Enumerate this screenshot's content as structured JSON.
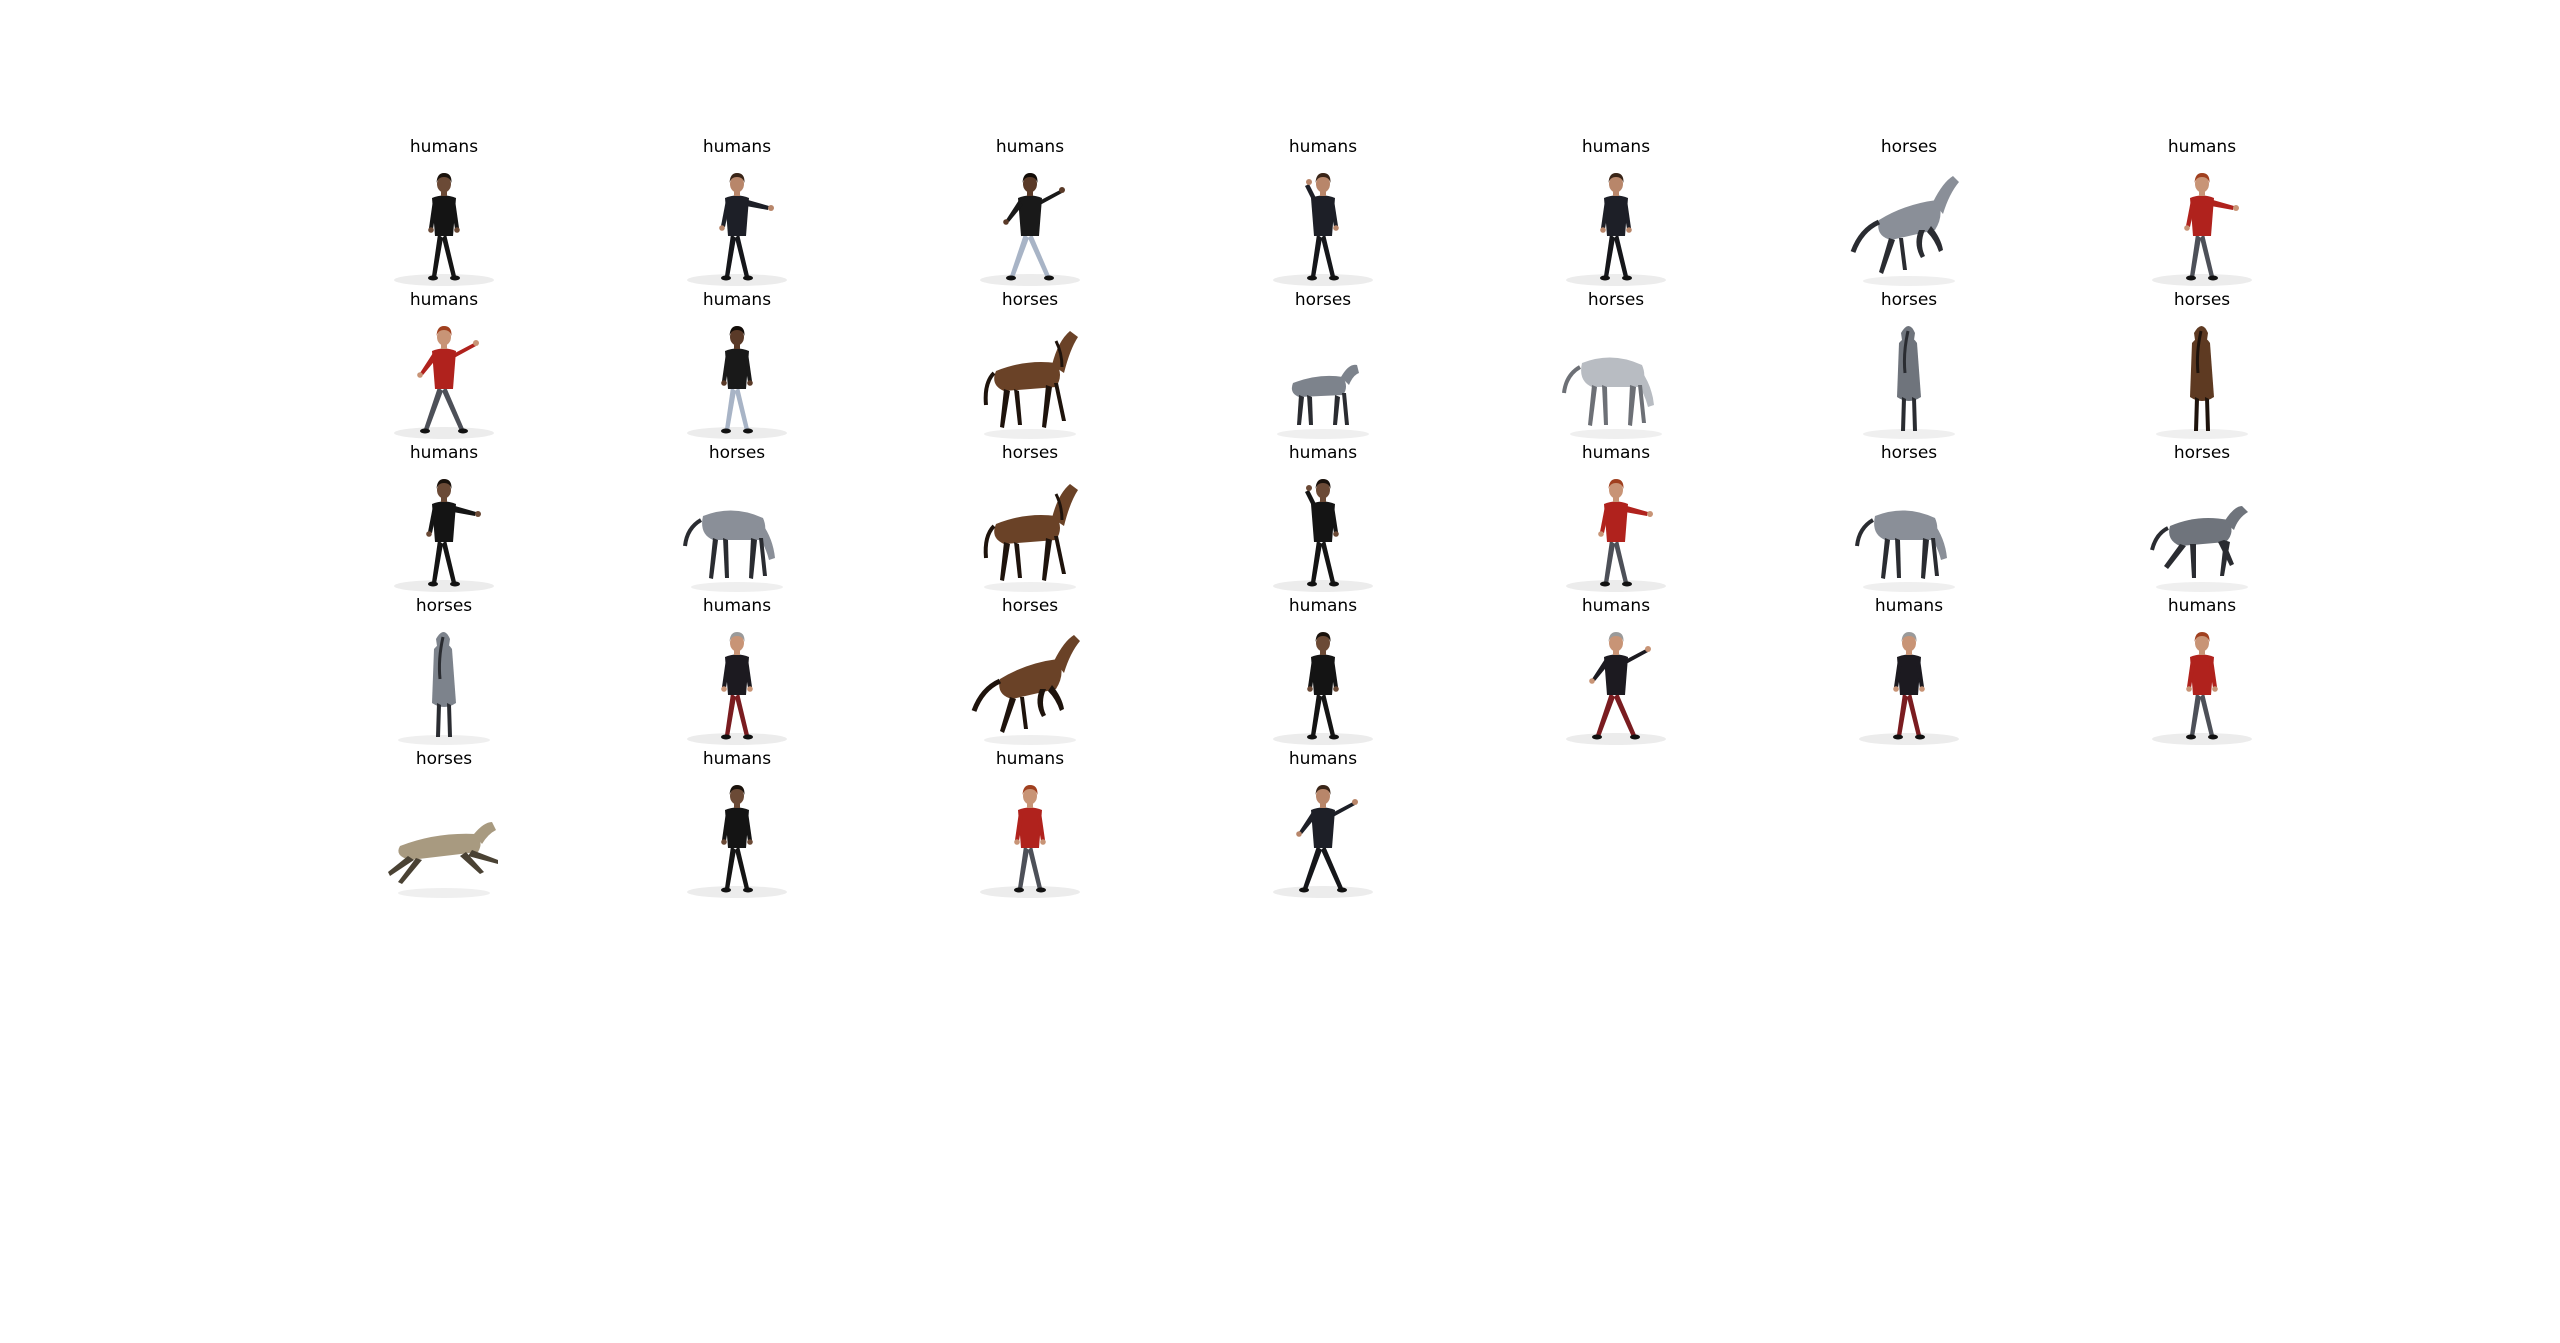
{
  "items": [
    {
      "label": "humans",
      "kind": "human",
      "skin": "#6b4a36",
      "shirt": "#141414",
      "pants": "#141414",
      "hair": "#1a120c",
      "pose": "stand"
    },
    {
      "label": "humans",
      "kind": "human",
      "skin": "#b8866a",
      "shirt": "#1d1f27",
      "pants": "#15161a",
      "hair": "#3a2518",
      "pose": "point"
    },
    {
      "label": "humans",
      "kind": "human",
      "skin": "#5a3a28",
      "shirt": "#191919",
      "pants": "#a8b4c6",
      "hair": "#120c08",
      "pose": "wide"
    },
    {
      "label": "humans",
      "kind": "human",
      "skin": "#b8866a",
      "shirt": "#1d1f27",
      "pants": "#15161a",
      "hair": "#3a2518",
      "pose": "headtouch"
    },
    {
      "label": "humans",
      "kind": "human",
      "skin": "#b8866a",
      "shirt": "#1d1f27",
      "pants": "#15161a",
      "hair": "#3a2518",
      "pose": "stand"
    },
    {
      "label": "horses",
      "kind": "horse",
      "coat": "#8a8f98",
      "dark": "#2a2c31",
      "pose": "rear"
    },
    {
      "label": "humans",
      "kind": "human",
      "skin": "#c89476",
      "shirt": "#b0221d",
      "pants": "#4d5058",
      "hair": "#a0401f",
      "pose": "point"
    },
    {
      "label": "humans",
      "kind": "human",
      "skin": "#c89476",
      "shirt": "#b0221d",
      "pants": "#4d5058",
      "hair": "#a0401f",
      "pose": "wide"
    },
    {
      "label": "humans",
      "kind": "human",
      "skin": "#5a3a28",
      "shirt": "#191919",
      "pants": "#a8b4c6",
      "hair": "#120c08",
      "pose": "stand"
    },
    {
      "label": "horses",
      "kind": "horse",
      "coat": "#6a4227",
      "dark": "#1e130c",
      "pose": "walk"
    },
    {
      "label": "horses",
      "kind": "horse",
      "coat": "#7d838c",
      "dark": "#2a2c31",
      "pose": "small"
    },
    {
      "label": "horses",
      "kind": "horse",
      "coat": "#b8bcc2",
      "dark": "#6d7076",
      "pose": "graze"
    },
    {
      "label": "horses",
      "kind": "horse",
      "coat": "#6f747c",
      "dark": "#2a2c31",
      "pose": "front"
    },
    {
      "label": "horses",
      "kind": "horse",
      "coat": "#5e3a22",
      "dark": "#1e130c",
      "pose": "front"
    },
    {
      "label": "humans",
      "kind": "human",
      "skin": "#6b4a36",
      "shirt": "#141414",
      "pants": "#141414",
      "hair": "#1a120c",
      "pose": "point"
    },
    {
      "label": "horses",
      "kind": "horse",
      "coat": "#8a8f98",
      "dark": "#2a2c31",
      "pose": "graze"
    },
    {
      "label": "horses",
      "kind": "horse",
      "coat": "#6a4227",
      "dark": "#1e130c",
      "pose": "walk"
    },
    {
      "label": "humans",
      "kind": "human",
      "skin": "#6b4a36",
      "shirt": "#141414",
      "pants": "#141414",
      "hair": "#1a120c",
      "pose": "headtouch"
    },
    {
      "label": "humans",
      "kind": "human",
      "skin": "#c89476",
      "shirt": "#b0221d",
      "pants": "#4d5058",
      "hair": "#a0401f",
      "pose": "point"
    },
    {
      "label": "horses",
      "kind": "horse",
      "coat": "#8a8f98",
      "dark": "#2a2c31",
      "pose": "graze"
    },
    {
      "label": "horses",
      "kind": "horse",
      "coat": "#6f747c",
      "dark": "#2a2c31",
      "pose": "gallop"
    },
    {
      "label": "horses",
      "kind": "horse",
      "coat": "#7d838c",
      "dark": "#2a2c31",
      "pose": "front"
    },
    {
      "label": "humans",
      "kind": "human",
      "skin": "#c89476",
      "shirt": "#1c1a20",
      "pants": "#7a1c20",
      "hair": "#9a9a9a",
      "pose": "stand"
    },
    {
      "label": "horses",
      "kind": "horse",
      "coat": "#6a4227",
      "dark": "#1e130c",
      "pose": "rear"
    },
    {
      "label": "humans",
      "kind": "human",
      "skin": "#6b4a36",
      "shirt": "#141414",
      "pants": "#141414",
      "hair": "#1a120c",
      "pose": "stand"
    },
    {
      "label": "humans",
      "kind": "human",
      "skin": "#c89476",
      "shirt": "#1c1a20",
      "pants": "#7a1c20",
      "hair": "#9a9a9a",
      "pose": "wide"
    },
    {
      "label": "humans",
      "kind": "human",
      "skin": "#c89476",
      "shirt": "#1c1a20",
      "pants": "#7a1c20",
      "hair": "#9a9a9a",
      "pose": "stand"
    },
    {
      "label": "humans",
      "kind": "human",
      "skin": "#c89476",
      "shirt": "#b0221d",
      "pants": "#4d5058",
      "hair": "#a0401f",
      "pose": "stand"
    },
    {
      "label": "horses",
      "kind": "horse",
      "coat": "#a89a80",
      "dark": "#4a4234",
      "pose": "leap"
    },
    {
      "label": "humans",
      "kind": "human",
      "skin": "#6b4a36",
      "shirt": "#141414",
      "pants": "#141414",
      "hair": "#1a120c",
      "pose": "stand"
    },
    {
      "label": "humans",
      "kind": "human",
      "skin": "#c89476",
      "shirt": "#b0221d",
      "pants": "#4d5058",
      "hair": "#a0401f",
      "pose": "stand"
    },
    {
      "label": "humans",
      "kind": "human",
      "skin": "#b8866a",
      "shirt": "#1d1f27",
      "pants": "#15161a",
      "hair": "#3a2518",
      "pose": "wide"
    }
  ]
}
